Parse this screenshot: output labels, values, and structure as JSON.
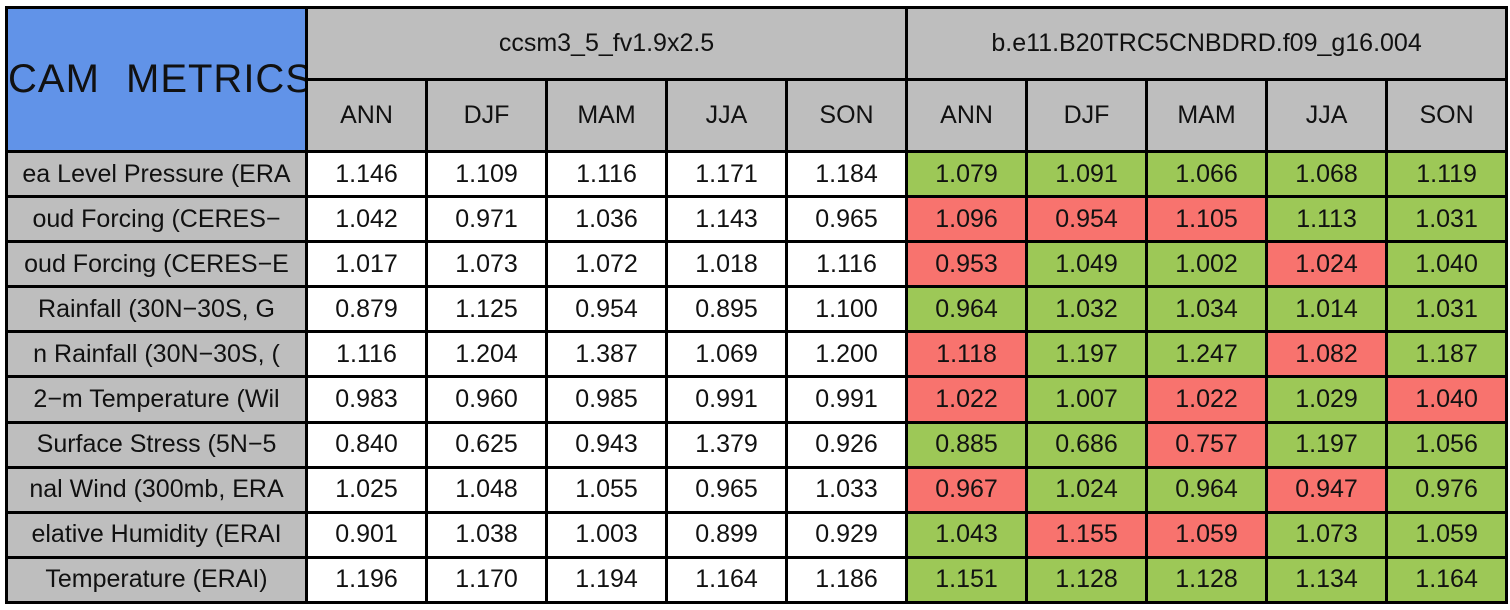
{
  "colors": {
    "header_blue": "#6193E8",
    "header_gray": "#BEBEBE",
    "good_green": "#9DC857",
    "bad_red": "#F8736E",
    "cell_white": "#FFFFFF",
    "border_black": "#000000"
  },
  "chart_data": {
    "type": "table",
    "title": "CAM METRICS",
    "column_groups": [
      {
        "name": "ccsm3_5_fv1.9x2.5",
        "columns": [
          "ANN",
          "DJF",
          "MAM",
          "JJA",
          "SON"
        ]
      },
      {
        "name": "b.e11.B20TRC5CNBDRD.f09_g16.004",
        "columns": [
          "ANN",
          "DJF",
          "MAM",
          "JJA",
          "SON"
        ]
      }
    ],
    "rows": [
      {
        "label": "ea Level Pressure (ERA",
        "group1_values": [
          "1.146",
          "1.109",
          "1.116",
          "1.171",
          "1.184"
        ],
        "group2_values": [
          "1.079",
          "1.091",
          "1.066",
          "1.068",
          "1.119"
        ],
        "group2_cell_colors": [
          "green",
          "green",
          "green",
          "green",
          "green"
        ]
      },
      {
        "label": "oud Forcing (CERES−",
        "group1_values": [
          "1.042",
          "0.971",
          "1.036",
          "1.143",
          "0.965"
        ],
        "group2_values": [
          "1.096",
          "0.954",
          "1.105",
          "1.113",
          "1.031"
        ],
        "group2_cell_colors": [
          "red",
          "red",
          "red",
          "green",
          "green"
        ]
      },
      {
        "label": "oud Forcing (CERES−E",
        "group1_values": [
          "1.017",
          "1.073",
          "1.072",
          "1.018",
          "1.116"
        ],
        "group2_values": [
          "0.953",
          "1.049",
          "1.002",
          "1.024",
          "1.040"
        ],
        "group2_cell_colors": [
          "red",
          "green",
          "green",
          "red",
          "green"
        ]
      },
      {
        "label": "Rainfall (30N−30S, G",
        "group1_values": [
          "0.879",
          "1.125",
          "0.954",
          "0.895",
          "1.100"
        ],
        "group2_values": [
          "0.964",
          "1.032",
          "1.034",
          "1.014",
          "1.031"
        ],
        "group2_cell_colors": [
          "green",
          "green",
          "green",
          "green",
          "green"
        ]
      },
      {
        "label": "n Rainfall (30N−30S, (",
        "group1_values": [
          "1.116",
          "1.204",
          "1.387",
          "1.069",
          "1.200"
        ],
        "group2_values": [
          "1.118",
          "1.197",
          "1.247",
          "1.082",
          "1.187"
        ],
        "group2_cell_colors": [
          "red",
          "green",
          "green",
          "red",
          "green"
        ]
      },
      {
        "label": "2−m Temperature (Wil",
        "group1_values": [
          "0.983",
          "0.960",
          "0.985",
          "0.991",
          "0.991"
        ],
        "group2_values": [
          "1.022",
          "1.007",
          "1.022",
          "1.029",
          "1.040"
        ],
        "group2_cell_colors": [
          "red",
          "green",
          "red",
          "green",
          "red"
        ]
      },
      {
        "label": "Surface Stress (5N−5",
        "group1_values": [
          "0.840",
          "0.625",
          "0.943",
          "1.379",
          "0.926"
        ],
        "group2_values": [
          "0.885",
          "0.686",
          "0.757",
          "1.197",
          "1.056"
        ],
        "group2_cell_colors": [
          "green",
          "green",
          "red",
          "green",
          "green"
        ]
      },
      {
        "label": "nal Wind (300mb, ERA",
        "group1_values": [
          "1.025",
          "1.048",
          "1.055",
          "0.965",
          "1.033"
        ],
        "group2_values": [
          "0.967",
          "1.024",
          "0.964",
          "0.947",
          "0.976"
        ],
        "group2_cell_colors": [
          "red",
          "green",
          "green",
          "red",
          "green"
        ]
      },
      {
        "label": "elative Humidity (ERAI",
        "group1_values": [
          "0.901",
          "1.038",
          "1.003",
          "0.899",
          "0.929"
        ],
        "group2_values": [
          "1.043",
          "1.155",
          "1.059",
          "1.073",
          "1.059"
        ],
        "group2_cell_colors": [
          "green",
          "red",
          "red",
          "green",
          "green"
        ]
      },
      {
        "label": "Temperature (ERAI)",
        "group1_values": [
          "1.196",
          "1.170",
          "1.194",
          "1.164",
          "1.186"
        ],
        "group2_values": [
          "1.151",
          "1.128",
          "1.128",
          "1.134",
          "1.164"
        ],
        "group2_cell_colors": [
          "green",
          "green",
          "green",
          "green",
          "green"
        ]
      }
    ]
  }
}
